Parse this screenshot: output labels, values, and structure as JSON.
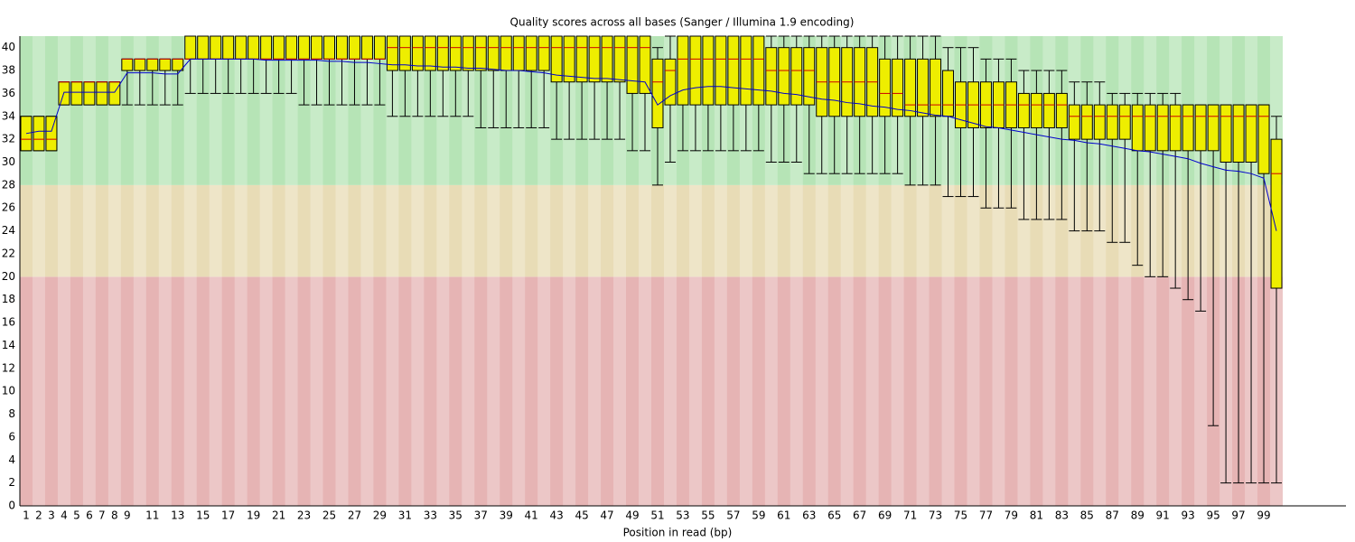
{
  "chart_data": {
    "type": "boxplot",
    "title": "Quality scores across all bases (Sanger / Illumina 1.9 encoding)",
    "x_label": "Position in read (bp)",
    "categories": [
      1,
      2,
      3,
      4,
      5,
      6,
      7,
      8,
      9,
      null,
      11,
      null,
      13,
      null,
      15,
      null,
      17,
      null,
      19,
      null,
      21,
      null,
      23,
      null,
      25,
      null,
      27,
      null,
      29,
      null,
      31,
      null,
      33,
      null,
      35,
      null,
      37,
      null,
      39,
      null,
      41,
      null,
      43,
      null,
      45,
      null,
      47,
      null,
      49,
      null,
      51,
      null,
      53,
      null,
      55,
      null,
      57,
      null,
      59,
      null,
      61,
      null,
      63,
      null,
      65,
      null,
      67,
      null,
      69,
      null,
      71,
      null,
      73,
      null,
      75,
      null,
      77,
      null,
      79,
      null,
      81,
      null,
      83,
      null,
      85,
      null,
      87,
      null,
      89,
      null,
      91,
      null,
      93,
      null,
      95,
      null,
      97,
      null,
      99,
      null
    ],
    "whisker_low": [
      31,
      31,
      31,
      35,
      35,
      35,
      35,
      35,
      35,
      35,
      35,
      35,
      35,
      36,
      36,
      36,
      36,
      36,
      36,
      36,
      36,
      36,
      35,
      35,
      35,
      35,
      35,
      35,
      35,
      34,
      34,
      34,
      34,
      34,
      34,
      34,
      33,
      33,
      33,
      33,
      33,
      33,
      32,
      32,
      32,
      32,
      32,
      32,
      31,
      31,
      28,
      30,
      31,
      31,
      31,
      31,
      31,
      31,
      31,
      30,
      30,
      30,
      29,
      29,
      29,
      29,
      29,
      29,
      29,
      29,
      28,
      28,
      28,
      27,
      27,
      27,
      26,
      26,
      26,
      25,
      25,
      25,
      25,
      24,
      24,
      24,
      23,
      23,
      21,
      20,
      20,
      19,
      18,
      17,
      7,
      2,
      2,
      2,
      2,
      2
    ],
    "q1": [
      31,
      31,
      31,
      35,
      35,
      35,
      35,
      35,
      38,
      38,
      38,
      38,
      38,
      39,
      39,
      39,
      39,
      39,
      39,
      39,
      39,
      39,
      39,
      39,
      39,
      39,
      39,
      39,
      39,
      38,
      38,
      38,
      38,
      38,
      38,
      38,
      38,
      38,
      38,
      38,
      38,
      38,
      37,
      37,
      37,
      37,
      37,
      37,
      36,
      36,
      33,
      35,
      35,
      35,
      35,
      35,
      35,
      35,
      35,
      35,
      35,
      35,
      35,
      34,
      34,
      34,
      34,
      34,
      34,
      34,
      34,
      34,
      34,
      34,
      33,
      33,
      33,
      33,
      33,
      33,
      33,
      33,
      33,
      32,
      32,
      32,
      32,
      32,
      31,
      31,
      31,
      31,
      31,
      31,
      31,
      30,
      30,
      30,
      29,
      19
    ],
    "median": [
      32,
      32,
      32,
      37,
      37,
      37,
      37,
      37,
      39,
      39,
      39,
      39,
      39,
      39,
      39,
      39,
      39,
      39,
      39,
      39,
      39,
      39,
      39,
      39,
      39,
      39,
      39,
      39,
      39,
      40,
      40,
      40,
      40,
      40,
      40,
      40,
      40,
      40,
      40,
      40,
      40,
      40,
      40,
      40,
      40,
      40,
      40,
      40,
      40,
      40,
      37,
      38,
      39,
      39,
      39,
      39,
      39,
      39,
      39,
      38,
      38,
      38,
      38,
      37,
      37,
      37,
      37,
      37,
      36,
      36,
      35,
      35,
      35,
      35,
      35,
      35,
      35,
      35,
      35,
      35,
      35,
      35,
      35,
      34,
      34,
      34,
      34,
      34,
      34,
      34,
      34,
      34,
      34,
      34,
      34,
      34,
      34,
      34,
      34,
      29
    ],
    "q3": [
      34,
      34,
      34,
      37,
      37,
      37,
      37,
      37,
      39,
      39,
      39,
      39,
      39,
      41,
      41,
      41,
      41,
      41,
      41,
      41,
      41,
      41,
      41,
      41,
      41,
      41,
      41,
      41,
      41,
      41,
      41,
      41,
      41,
      41,
      41,
      41,
      41,
      41,
      41,
      41,
      41,
      41,
      41,
      41,
      41,
      41,
      41,
      41,
      41,
      41,
      39,
      39,
      41,
      41,
      41,
      41,
      41,
      41,
      41,
      40,
      40,
      40,
      40,
      40,
      40,
      40,
      40,
      40,
      39,
      39,
      39,
      39,
      39,
      38,
      37,
      37,
      37,
      37,
      37,
      36,
      36,
      36,
      36,
      35,
      35,
      35,
      35,
      35,
      35,
      35,
      35,
      35,
      35,
      35,
      35,
      35,
      35,
      35,
      35,
      32
    ],
    "whisker_high": [
      34,
      34,
      34,
      37,
      37,
      37,
      37,
      37,
      39,
      39,
      39,
      39,
      39,
      41,
      41,
      41,
      41,
      41,
      41,
      41,
      41,
      41,
      41,
      41,
      41,
      41,
      41,
      41,
      41,
      41,
      41,
      41,
      41,
      41,
      41,
      41,
      41,
      41,
      41,
      41,
      41,
      41,
      41,
      41,
      41,
      41,
      41,
      41,
      41,
      41,
      40,
      41,
      41,
      41,
      41,
      41,
      41,
      41,
      41,
      41,
      41,
      41,
      41,
      41,
      41,
      41,
      41,
      41,
      41,
      41,
      41,
      41,
      41,
      40,
      40,
      40,
      39,
      39,
      39,
      38,
      38,
      38,
      38,
      37,
      37,
      37,
      36,
      36,
      36,
      36,
      36,
      36,
      35,
      35,
      35,
      35,
      35,
      35,
      35,
      34
    ],
    "mean": [
      32.5,
      32.7,
      32.7,
      36.1,
      36.1,
      36.1,
      36.1,
      36.1,
      37.8,
      37.8,
      37.8,
      37.7,
      37.7,
      39.0,
      39.0,
      39.0,
      39.0,
      39.0,
      39.0,
      38.9,
      38.9,
      38.9,
      38.9,
      38.9,
      38.8,
      38.8,
      38.7,
      38.7,
      38.6,
      38.5,
      38.5,
      38.4,
      38.4,
      38.3,
      38.3,
      38.2,
      38.2,
      38.1,
      38.0,
      38.0,
      37.9,
      37.8,
      37.6,
      37.5,
      37.4,
      37.3,
      37.3,
      37.2,
      37.1,
      37.0,
      35.0,
      35.8,
      36.3,
      36.5,
      36.6,
      36.6,
      36.5,
      36.4,
      36.3,
      36.2,
      36.0,
      35.9,
      35.7,
      35.5,
      35.4,
      35.2,
      35.1,
      34.9,
      34.8,
      34.6,
      34.5,
      34.3,
      34.1,
      34.0,
      33.7,
      33.4,
      33.1,
      33.0,
      32.8,
      32.6,
      32.4,
      32.2,
      32.0,
      31.9,
      31.7,
      31.6,
      31.4,
      31.2,
      31.0,
      30.9,
      30.7,
      30.5,
      30.3,
      29.9,
      29.6,
      29.3,
      29.2,
      29.0,
      28.6,
      24.0
    ],
    "box_color": "#eeee00",
    "median_color": "#cc0000",
    "mean_color": "#0000cc",
    "zones": [
      {
        "from": 0,
        "to": 20,
        "color": "#e6b4b4"
      },
      {
        "from": 20,
        "to": 28,
        "color": "#e8dcb6"
      },
      {
        "from": 28,
        "to": 41,
        "color": "#b6e4b6"
      }
    ],
    "ylim": [
      0,
      41
    ],
    "yticks": [
      0,
      2,
      4,
      6,
      8,
      10,
      12,
      14,
      16,
      18,
      20,
      22,
      24,
      26,
      28,
      30,
      32,
      34,
      36,
      38,
      40
    ]
  }
}
